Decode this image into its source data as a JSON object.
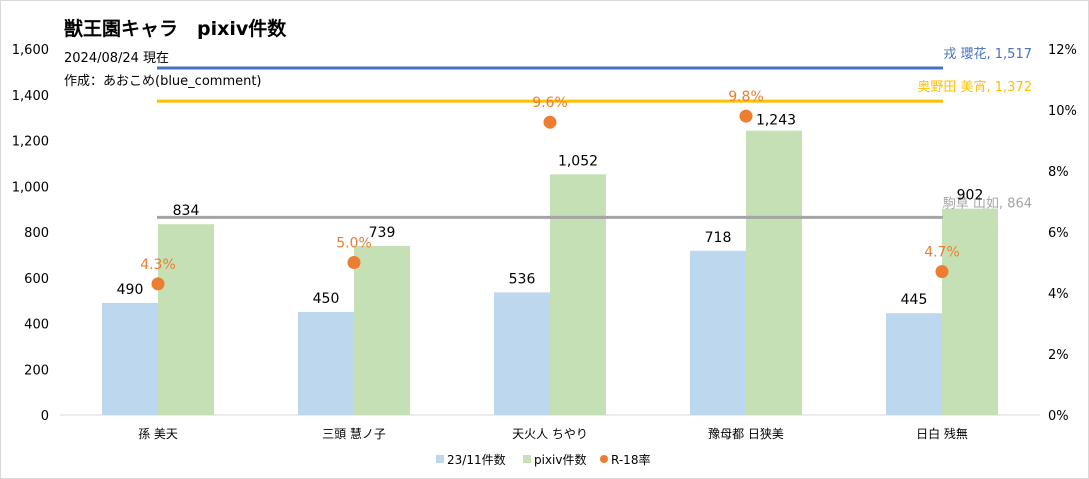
{
  "chart_data": {
    "type": "bar",
    "title": "獣王園キャラ　pixiv件数",
    "subtitle_lines": [
      "2024/08/24 現在",
      "作成：あおこめ(blue_comment)"
    ],
    "categories": [
      "孫 美天",
      "三頭 慧ノ子",
      "天火人 ちやり",
      "豫母都 日狭美",
      "日白 残無"
    ],
    "series": [
      {
        "name": "23/11件数",
        "type": "bar",
        "axis": "left",
        "color": "#bdd7ee",
        "values": [
          490,
          450,
          536,
          718,
          445
        ],
        "labels": [
          "490",
          "450",
          "536",
          "718",
          "445"
        ]
      },
      {
        "name": "pixiv件数",
        "type": "bar",
        "axis": "left",
        "color": "#c5e0b4",
        "values": [
          834,
          739,
          1052,
          1243,
          902
        ],
        "labels": [
          "834",
          "739",
          "1,052",
          "1,243",
          "902"
        ]
      },
      {
        "name": "R-18率",
        "type": "scatter",
        "axis": "right",
        "color": "#ed7d31",
        "values": [
          4.3,
          5.0,
          9.6,
          9.8,
          4.7
        ],
        "labels": [
          "4.3%",
          "5.0%",
          "9.6%",
          "9.8%",
          "4.7%"
        ]
      }
    ],
    "reference_lines": [
      {
        "label": "戎 瓔花, 1,517",
        "value": 1517,
        "color": "#4472c4"
      },
      {
        "label": "奥野田 美宵, 1,372",
        "value": 1372,
        "color": "#ffc000"
      },
      {
        "label": "駒草 山如, 864",
        "value": 864,
        "color": "#a5a5a5"
      }
    ],
    "y_left": {
      "min": 0,
      "max": 1600,
      "ticks": [
        0,
        200,
        400,
        600,
        800,
        1000,
        1200,
        1400,
        1600
      ],
      "tick_labels": [
        "0",
        "200",
        "400",
        "600",
        "800",
        "1,000",
        "1,200",
        "1,400",
        "1,600"
      ]
    },
    "y_right": {
      "min": 0,
      "max": 12,
      "ticks": [
        0,
        2,
        4,
        6,
        8,
        10,
        12
      ],
      "tick_labels": [
        "0%",
        "2%",
        "4%",
        "6%",
        "8%",
        "10%",
        "12%"
      ]
    },
    "legend": {
      "position": "bottom",
      "entries": [
        "23/11件数",
        "pixiv件数",
        "R-18率"
      ]
    },
    "grid": false
  }
}
